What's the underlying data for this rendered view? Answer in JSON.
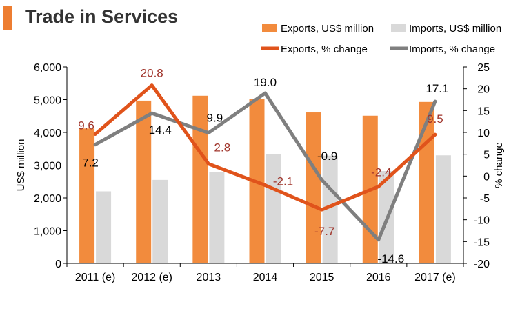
{
  "chart_data": {
    "type": "bar",
    "title": "Trade in Services",
    "categories": [
      "2011 (e)",
      "2012 (e)",
      "2013",
      "2014",
      "2015",
      "2016",
      "2017 (e)"
    ],
    "ylabel": "US$ million",
    "y2label": "% change",
    "ylim": [
      0,
      6000
    ],
    "y2lim": [
      -20,
      25
    ],
    "yticks": [
      "0",
      "1,000",
      "2,000",
      "3,000",
      "4,000",
      "5,000",
      "6,000"
    ],
    "y2ticks": [
      "-20",
      "-15",
      "-10",
      "-5",
      "0",
      "5",
      "10",
      "15",
      "20",
      "25"
    ],
    "grid": false,
    "legend_position": "top-right",
    "series": [
      {
        "name": "Exports, US$ million",
        "kind": "bar",
        "axis": "left",
        "color": "#F28B3D",
        "values": [
          4120,
          4970,
          5120,
          5020,
          4610,
          4510,
          4930
        ]
      },
      {
        "name": "Imports, US$ million",
        "kind": "bar",
        "axis": "left",
        "color": "#D9D9D9",
        "values": [
          2200,
          2550,
          2800,
          3330,
          3290,
          2820,
          3300
        ]
      },
      {
        "name": "Exports, % change",
        "kind": "line",
        "axis": "right",
        "color": "#E0531B",
        "values": [
          9.6,
          20.8,
          2.8,
          -2.1,
          -7.7,
          -2.4,
          9.5
        ],
        "labels": [
          "9.6",
          "20.8",
          "2.8",
          "-2.1",
          "-7.7",
          "-2.4",
          "9.5"
        ]
      },
      {
        "name": "Imports, % change",
        "kind": "line",
        "axis": "right",
        "color": "#7F7F7F",
        "values": [
          7.2,
          14.4,
          9.9,
          19.0,
          -0.9,
          -14.6,
          17.1
        ],
        "labels": [
          "7.2",
          "14.4",
          "9.9",
          "19.0",
          "-0.9",
          "-14.6",
          "17.1"
        ]
      }
    ],
    "label_colors": {
      "exports": "#A0342B",
      "imports": "#000000"
    }
  }
}
